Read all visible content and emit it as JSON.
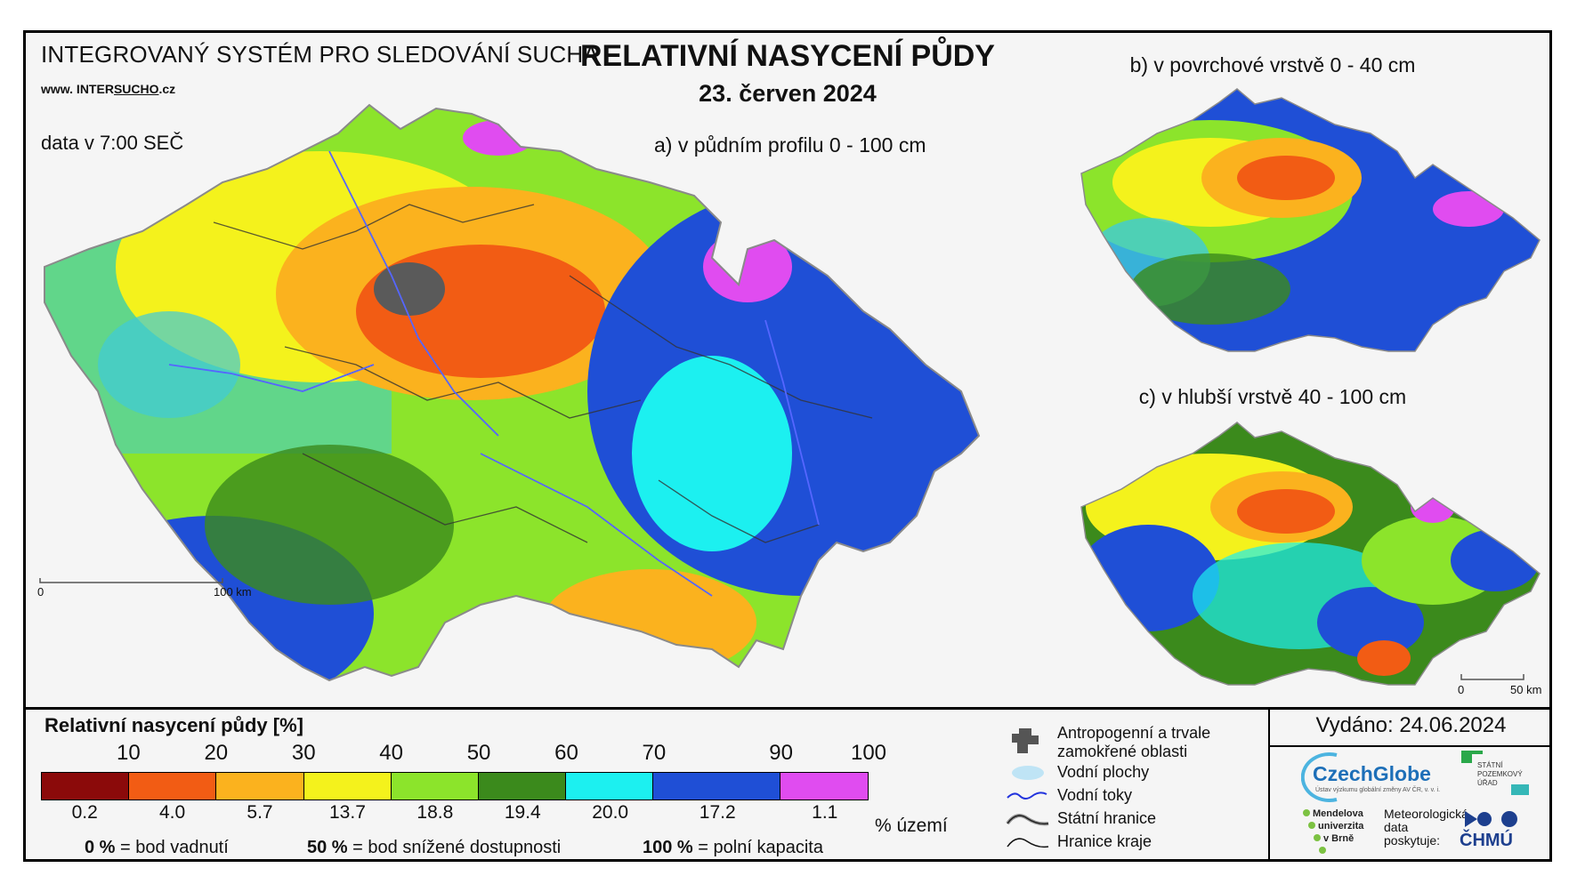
{
  "header": {
    "system_title": "INTEGROVANÝ SYSTÉM PRO SLEDOVÁNÍ SUCHA",
    "url_prefix": "www. INTER",
    "url_emph": "SUCHO",
    "url_suffix": ".cz",
    "time_note": "data v 7:00 SEČ",
    "main_title": "RELATIVNÍ NASYCENÍ PŮDY",
    "date": "23. červen 2024"
  },
  "maps": {
    "a_label": "a) v půdním profilu 0 - 100 cm",
    "b_label": "b) v povrchové vrstvě 0 - 40 cm",
    "c_label": "c) v hlubší vrstvě 40 - 100 cm",
    "scale_main": {
      "zero": "0",
      "end": "100 km"
    },
    "scale_small": {
      "zero": "0",
      "end": "50 km"
    }
  },
  "legend": {
    "title": "Relativní nasycení půdy [%]",
    "ticks": [
      "10",
      "20",
      "30",
      "40",
      "50",
      "60",
      "70",
      "90",
      "100"
    ],
    "classes": [
      {
        "color": "#8b0a0a",
        "share": "0.2"
      },
      {
        "color": "#f25c14",
        "share": "4.0"
      },
      {
        "color": "#fbb21e",
        "share": "5.7"
      },
      {
        "color": "#f4f21c",
        "share": "13.7"
      },
      {
        "color": "#8ce42b",
        "share": "18.8"
      },
      {
        "color": "#3b8a1c",
        "share": "19.4"
      },
      {
        "color": "#1cf0f0",
        "share": "20.0"
      },
      {
        "color": "#1f4fd6",
        "share": "17.2"
      },
      {
        "color": "#e04cf0",
        "share": "1.1"
      }
    ],
    "share_unit": "% území",
    "notes": [
      {
        "value": "0 %",
        "text": "= bod vadnutí"
      },
      {
        "value": "50 %",
        "text": "= bod snížené dostupnosti"
      },
      {
        "value": "100 %",
        "text": "= polní kapacita"
      }
    ]
  },
  "symbols": {
    "anthropogenic": "Antropogenní a trvale zamokřené oblasti",
    "water_bodies": "Vodní plochy",
    "rivers": "Vodní toky",
    "state_border": "Státní hranice",
    "region_border": "Hranice kraje"
  },
  "footer": {
    "issued": "Vydáno: 24.06.2024",
    "czechglobe": "CzechGlobe",
    "czechglobe_sub": "Ústav výzkumu globální změny AV ČR, v. v. i.",
    "mendel": [
      "Mendelova",
      "univerzita",
      "v Brně"
    ],
    "spu": [
      "STÁTNÍ",
      "POZEMKOVÝ",
      "ÚŘAD"
    ],
    "met_data": [
      "Meteorologická",
      "data",
      "poskytuje:"
    ],
    "chmu": "ČHMÚ"
  }
}
